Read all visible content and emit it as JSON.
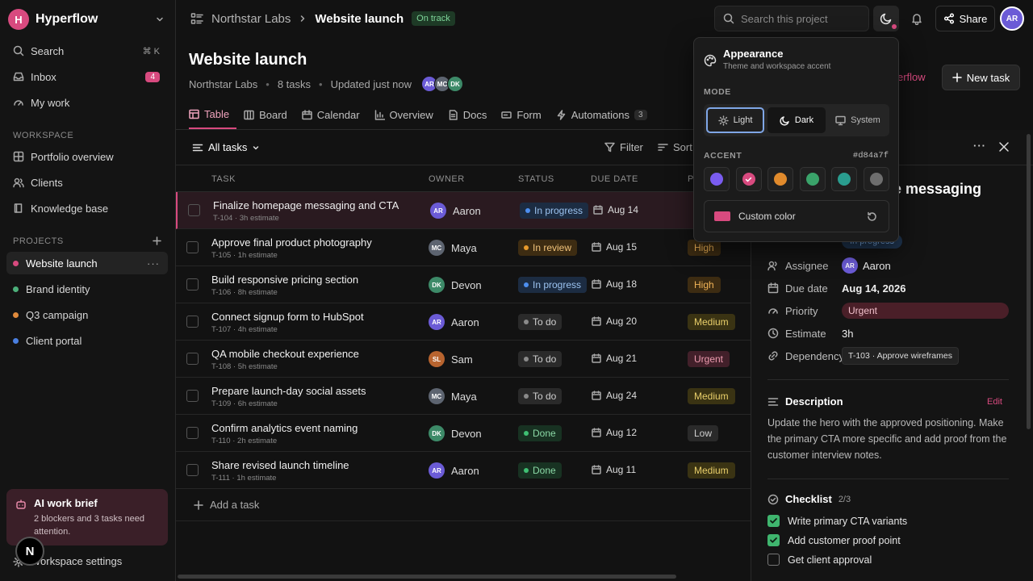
{
  "colors": {
    "accent": "#d84a7f"
  },
  "sidebar": {
    "workspace_initial": "H",
    "workspace_name": "Hyperflow",
    "nav": [
      {
        "label": "Search",
        "shortcut": "⌘ K",
        "icon": "search-icon"
      },
      {
        "label": "Inbox",
        "badge": "4",
        "icon": "inbox-icon"
      },
      {
        "label": "My work",
        "icon": "gauge-icon"
      }
    ],
    "workspace_heading": "WORKSPACE",
    "workspace_items": [
      {
        "label": "Portfolio overview",
        "icon": "grid-icon"
      },
      {
        "label": "Clients",
        "icon": "users-icon"
      },
      {
        "label": "Knowledge base",
        "icon": "book-icon"
      }
    ],
    "projects_heading": "PROJECTS",
    "projects": [
      {
        "label": "Website launch",
        "color": "#d84a7f"
      },
      {
        "label": "Brand identity",
        "color": "#4caf7a"
      },
      {
        "label": "Q3 campaign",
        "color": "#e08a3c"
      },
      {
        "label": "Client portal",
        "color": "#4a7fe0"
      }
    ],
    "brief": {
      "title": "AI work brief",
      "text": "2 blockers and 3 tasks need attention."
    },
    "settings_label": "Workspace settings",
    "bottom_badge": "N"
  },
  "topbar": {
    "crumb_parent": "Northstar Labs",
    "crumb_current": "Website launch",
    "status_badge": "On track",
    "search_placeholder": "Search this project",
    "share_label": "Share",
    "user_initials": "AR"
  },
  "page": {
    "title": "Website launch",
    "org": "Northstar Labs",
    "task_count": "8 tasks",
    "updated": "Updated just now",
    "members": [
      "AR",
      "MC",
      "DK"
    ],
    "new_task_label": "New task",
    "hidden_link_text": "erflow"
  },
  "tabs": [
    {
      "label": "Table",
      "icon": "table-icon"
    },
    {
      "label": "Board",
      "icon": "board-icon"
    },
    {
      "label": "Calendar",
      "icon": "calendar-icon"
    },
    {
      "label": "Overview",
      "icon": "chart-icon"
    },
    {
      "label": "Docs",
      "icon": "doc-icon"
    },
    {
      "label": "Form",
      "icon": "form-icon"
    },
    {
      "label": "Automations",
      "icon": "bolt-icon",
      "count": "3"
    }
  ],
  "toolbar": {
    "view_label": "All tasks",
    "filter_label": "Filter",
    "sort_label": "Sort"
  },
  "table": {
    "columns": [
      "TASK",
      "OWNER",
      "STATUS",
      "DUE DATE",
      "P"
    ],
    "rows": [
      {
        "name": "Finalize homepage messaging and CTA",
        "sub": "T-104 · 3h estimate",
        "owner": "Aaron",
        "owner_initials": "AR",
        "owner_color": "#6b5bd6",
        "status": "In progress",
        "status_kind": "progress",
        "due": "Aug 14",
        "priority": "",
        "priority_kind": ""
      },
      {
        "name": "Approve final product photography",
        "sub": "T-105 · 1h estimate",
        "owner": "Maya",
        "owner_initials": "MC",
        "owner_color": "#5d6470",
        "status": "In review",
        "status_kind": "review",
        "due": "Aug 15",
        "priority": "High",
        "priority_kind": "high"
      },
      {
        "name": "Build responsive pricing section",
        "sub": "T-106 · 8h estimate",
        "owner": "Devon",
        "owner_initials": "DK",
        "owner_color": "#3d8a68",
        "status": "In progress",
        "status_kind": "progress",
        "due": "Aug 18",
        "priority": "High",
        "priority_kind": "high"
      },
      {
        "name": "Connect signup form to HubSpot",
        "sub": "T-107 · 4h estimate",
        "owner": "Aaron",
        "owner_initials": "AR",
        "owner_color": "#6b5bd6",
        "status": "To do",
        "status_kind": "todo",
        "due": "Aug 20",
        "priority": "Medium",
        "priority_kind": "medium"
      },
      {
        "name": "QA mobile checkout experience",
        "sub": "T-108 · 5h estimate",
        "owner": "Sam",
        "owner_initials": "SL",
        "owner_color": "#b8642f",
        "status": "To do",
        "status_kind": "todo",
        "due": "Aug 21",
        "priority": "Urgent",
        "priority_kind": "urgent"
      },
      {
        "name": "Prepare launch-day social assets",
        "sub": "T-109 · 6h estimate",
        "owner": "Maya",
        "owner_initials": "MC",
        "owner_color": "#5d6470",
        "status": "To do",
        "status_kind": "todo",
        "due": "Aug 24",
        "priority": "Medium",
        "priority_kind": "medium"
      },
      {
        "name": "Confirm analytics event naming",
        "sub": "T-110 · 2h estimate",
        "owner": "Devon",
        "owner_initials": "DK",
        "owner_color": "#3d8a68",
        "status": "Done",
        "status_kind": "done",
        "due": "Aug 12",
        "priority": "Low",
        "priority_kind": "low"
      },
      {
        "name": "Share revised launch timeline",
        "sub": "T-111 · 1h estimate",
        "owner": "Aaron",
        "owner_initials": "AR",
        "owner_color": "#6b5bd6",
        "status": "Done",
        "status_kind": "done",
        "due": "Aug 11",
        "priority": "Medium",
        "priority_kind": "medium"
      }
    ],
    "add_task_label": "Add a task"
  },
  "detail": {
    "title_fragment": "ge messaging",
    "status_fragment": "In progress",
    "props": [
      {
        "label": "Assignee",
        "value": "Aaron",
        "initials": "AR"
      },
      {
        "label": "Due date",
        "value": "Aug 14, 2026"
      },
      {
        "label": "Priority",
        "value": "Urgent"
      },
      {
        "label": "Estimate",
        "value": "3h"
      },
      {
        "label": "Dependency",
        "value": "T-103 · Approve wireframes"
      }
    ],
    "description_heading": "Description",
    "edit_label": "Edit",
    "description": "Update the hero with the approved positioning. Make the primary CTA more specific and add proof from the customer interview notes.",
    "checklist_heading": "Checklist",
    "checklist_count": "2/3",
    "checklist": [
      {
        "label": "Write primary CTA variants",
        "done": true
      },
      {
        "label": "Add customer proof point",
        "done": true
      },
      {
        "label": "Get client approval",
        "done": false
      }
    ]
  },
  "appearance": {
    "title": "Appearance",
    "subtitle": "Theme and workspace accent",
    "mode_heading": "MODE",
    "modes": [
      "Light",
      "Dark",
      "System"
    ],
    "selected_mode": "Light",
    "accent_heading": "ACCENT",
    "accent_hex": "#d84a7f",
    "swatches": [
      "#7a5cf0",
      "#d84a7f",
      "#e08a2c",
      "#3aa36a",
      "#2a9d8f",
      "#6e6e6e"
    ],
    "selected_swatch": 1,
    "custom_label": "Custom color"
  }
}
